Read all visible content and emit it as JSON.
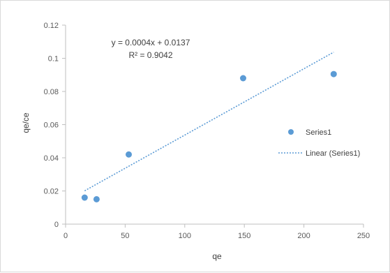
{
  "chart_data": {
    "type": "scatter",
    "title": "",
    "xlabel": "qe",
    "ylabel": "qe/ce",
    "xlim": [
      0,
      250
    ],
    "ylim": [
      0,
      0.12
    ],
    "x_ticks": [
      "0",
      "50",
      "100",
      "150",
      "200",
      "250"
    ],
    "y_ticks": [
      "0",
      "0.02",
      "0.04",
      "0.06",
      "0.08",
      "0.1",
      "0.12"
    ],
    "grid": false,
    "legend_position": "right",
    "series": [
      {
        "name": "Series1",
        "color": "#5b9bd5",
        "marker": "circle",
        "x": [
          16,
          26,
          53,
          149,
          225
        ],
        "y": [
          0.016,
          0.015,
          0.042,
          0.088,
          0.0905
        ]
      }
    ],
    "trendline": {
      "name": "Linear (Series1)",
      "color": "#5b9bd5",
      "style": "dotted",
      "slope": 0.0004,
      "intercept": 0.0137,
      "x_range": [
        16,
        225
      ],
      "equation": "y = 0.0004x + 0.0137",
      "r_squared": "R² = 0.9042"
    }
  }
}
